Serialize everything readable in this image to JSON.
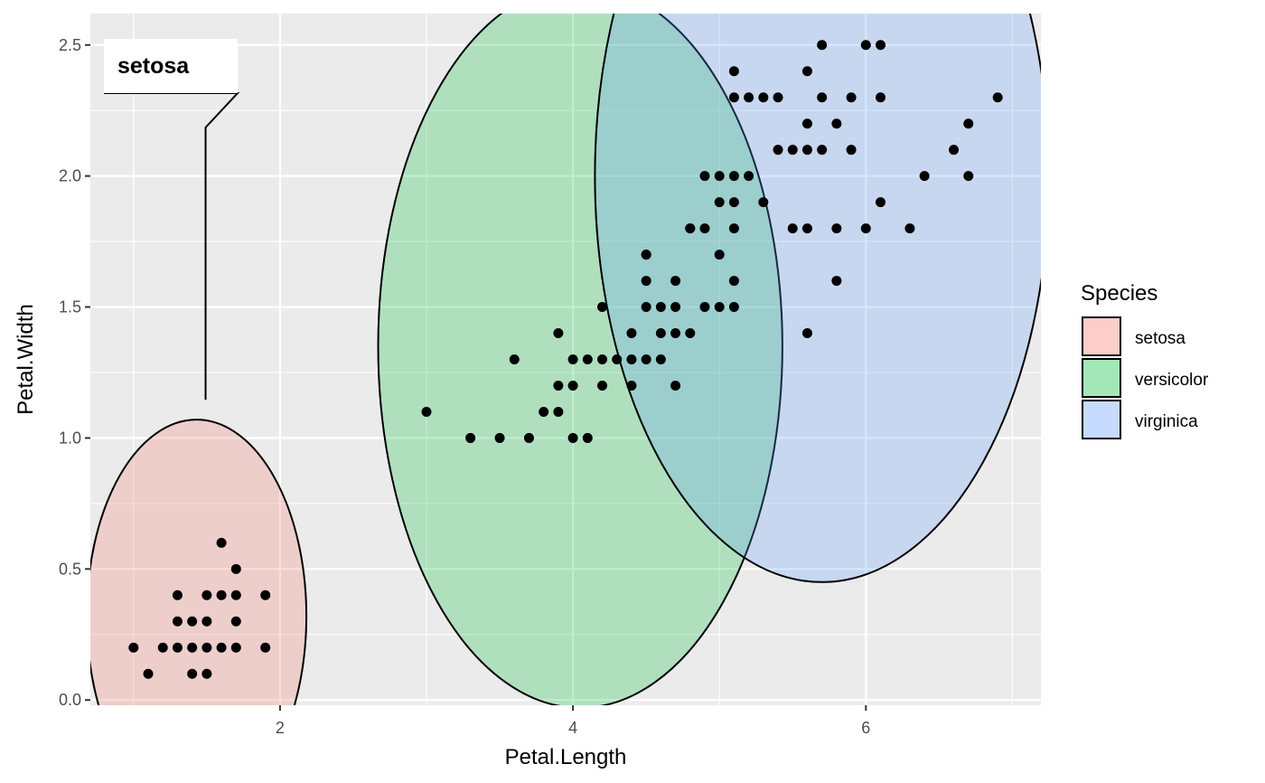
{
  "chart_data": {
    "type": "scatter",
    "xlabel": "Petal.Length",
    "ylabel": "Petal.Width",
    "xlim": [
      0.705,
      7.195
    ],
    "ylim": [
      -0.02,
      2.62
    ],
    "x_ticks": [
      2,
      4,
      6
    ],
    "y_ticks": [
      0.0,
      0.5,
      1.0,
      1.5,
      2.0,
      2.5
    ],
    "y_tick_labels": [
      "0.0",
      "0.5",
      "1.0",
      "1.5",
      "2.0",
      "2.5"
    ],
    "grid": true,
    "legend": {
      "title": "Species",
      "placement": "right",
      "entries": [
        "setosa",
        "versicolor",
        "virginica"
      ]
    },
    "annotation": {
      "label": "setosa",
      "target_series": "setosa"
    },
    "series": [
      {
        "name": "setosa",
        "fill": "#F8766D",
        "circle": {
          "cx": 1.43,
          "cy": 0.32,
          "r": 0.75
        },
        "points": [
          [
            1.4,
            0.2
          ],
          [
            1.3,
            0.2
          ],
          [
            1.5,
            0.2
          ],
          [
            1.2,
            0.2
          ],
          [
            1.0,
            0.2
          ],
          [
            1.7,
            0.2
          ],
          [
            1.9,
            0.2
          ],
          [
            1.6,
            0.2
          ],
          [
            1.1,
            0.1
          ],
          [
            1.5,
            0.1
          ],
          [
            1.4,
            0.1
          ],
          [
            1.4,
            0.3
          ],
          [
            1.3,
            0.3
          ],
          [
            1.5,
            0.3
          ],
          [
            1.7,
            0.3
          ],
          [
            1.5,
            0.4
          ],
          [
            1.3,
            0.4
          ],
          [
            1.7,
            0.4
          ],
          [
            1.6,
            0.4
          ],
          [
            1.9,
            0.4
          ],
          [
            1.7,
            0.5
          ],
          [
            1.6,
            0.6
          ]
        ]
      },
      {
        "name": "versicolor",
        "fill": "#00BA38",
        "circle": {
          "cx": 4.05,
          "cy": 1.35,
          "r": 1.38
        },
        "points": [
          [
            3.0,
            1.1
          ],
          [
            3.3,
            1.0
          ],
          [
            3.5,
            1.0
          ],
          [
            3.6,
            1.3
          ],
          [
            3.7,
            1.0
          ],
          [
            3.8,
            1.1
          ],
          [
            3.9,
            1.4
          ],
          [
            3.9,
            1.2
          ],
          [
            3.9,
            1.1
          ],
          [
            4.0,
            1.3
          ],
          [
            4.0,
            1.2
          ],
          [
            4.0,
            1.0
          ],
          [
            4.1,
            1.3
          ],
          [
            4.1,
            1.0
          ],
          [
            4.2,
            1.5
          ],
          [
            4.2,
            1.3
          ],
          [
            4.2,
            1.2
          ],
          [
            4.3,
            1.3
          ],
          [
            4.4,
            1.4
          ],
          [
            4.4,
            1.3
          ],
          [
            4.4,
            1.2
          ],
          [
            4.5,
            1.5
          ],
          [
            4.5,
            1.3
          ],
          [
            4.5,
            1.6
          ],
          [
            4.5,
            1.7
          ],
          [
            4.6,
            1.5
          ],
          [
            4.6,
            1.4
          ],
          [
            4.6,
            1.3
          ],
          [
            4.7,
            1.4
          ],
          [
            4.7,
            1.6
          ],
          [
            4.7,
            1.5
          ],
          [
            4.7,
            1.2
          ],
          [
            4.8,
            1.8
          ],
          [
            4.8,
            1.4
          ],
          [
            4.9,
            1.5
          ],
          [
            5.0,
            1.7
          ],
          [
            5.1,
            1.6
          ]
        ]
      },
      {
        "name": "virginica",
        "fill": "#619CFF",
        "circle": {
          "cx": 5.7,
          "cy": 2.0,
          "r": 1.55
        },
        "points": [
          [
            4.5,
            1.7
          ],
          [
            4.8,
            1.8
          ],
          [
            4.9,
            1.8
          ],
          [
            4.9,
            2.0
          ],
          [
            5.0,
            2.0
          ],
          [
            5.0,
            1.9
          ],
          [
            5.0,
            1.5
          ],
          [
            5.1,
            2.4
          ],
          [
            5.1,
            2.3
          ],
          [
            5.1,
            2.0
          ],
          [
            5.1,
            1.9
          ],
          [
            5.1,
            1.8
          ],
          [
            5.1,
            1.5
          ],
          [
            5.2,
            2.3
          ],
          [
            5.2,
            2.0
          ],
          [
            5.3,
            2.3
          ],
          [
            5.3,
            1.9
          ],
          [
            5.4,
            2.3
          ],
          [
            5.4,
            2.1
          ],
          [
            5.5,
            2.1
          ],
          [
            5.5,
            1.8
          ],
          [
            5.6,
            2.4
          ],
          [
            5.6,
            2.2
          ],
          [
            5.6,
            2.1
          ],
          [
            5.6,
            1.8
          ],
          [
            5.6,
            1.4
          ],
          [
            5.7,
            2.5
          ],
          [
            5.7,
            2.3
          ],
          [
            5.7,
            2.1
          ],
          [
            5.8,
            2.2
          ],
          [
            5.8,
            1.8
          ],
          [
            5.8,
            1.6
          ],
          [
            5.9,
            2.3
          ],
          [
            5.9,
            2.1
          ],
          [
            6.0,
            2.5
          ],
          [
            6.0,
            1.8
          ],
          [
            6.1,
            2.5
          ],
          [
            6.1,
            2.3
          ],
          [
            6.1,
            1.9
          ],
          [
            6.3,
            1.8
          ],
          [
            6.4,
            2.0
          ],
          [
            6.6,
            2.1
          ],
          [
            6.7,
            2.2
          ],
          [
            6.7,
            2.0
          ],
          [
            6.9,
            2.3
          ]
        ]
      }
    ]
  }
}
